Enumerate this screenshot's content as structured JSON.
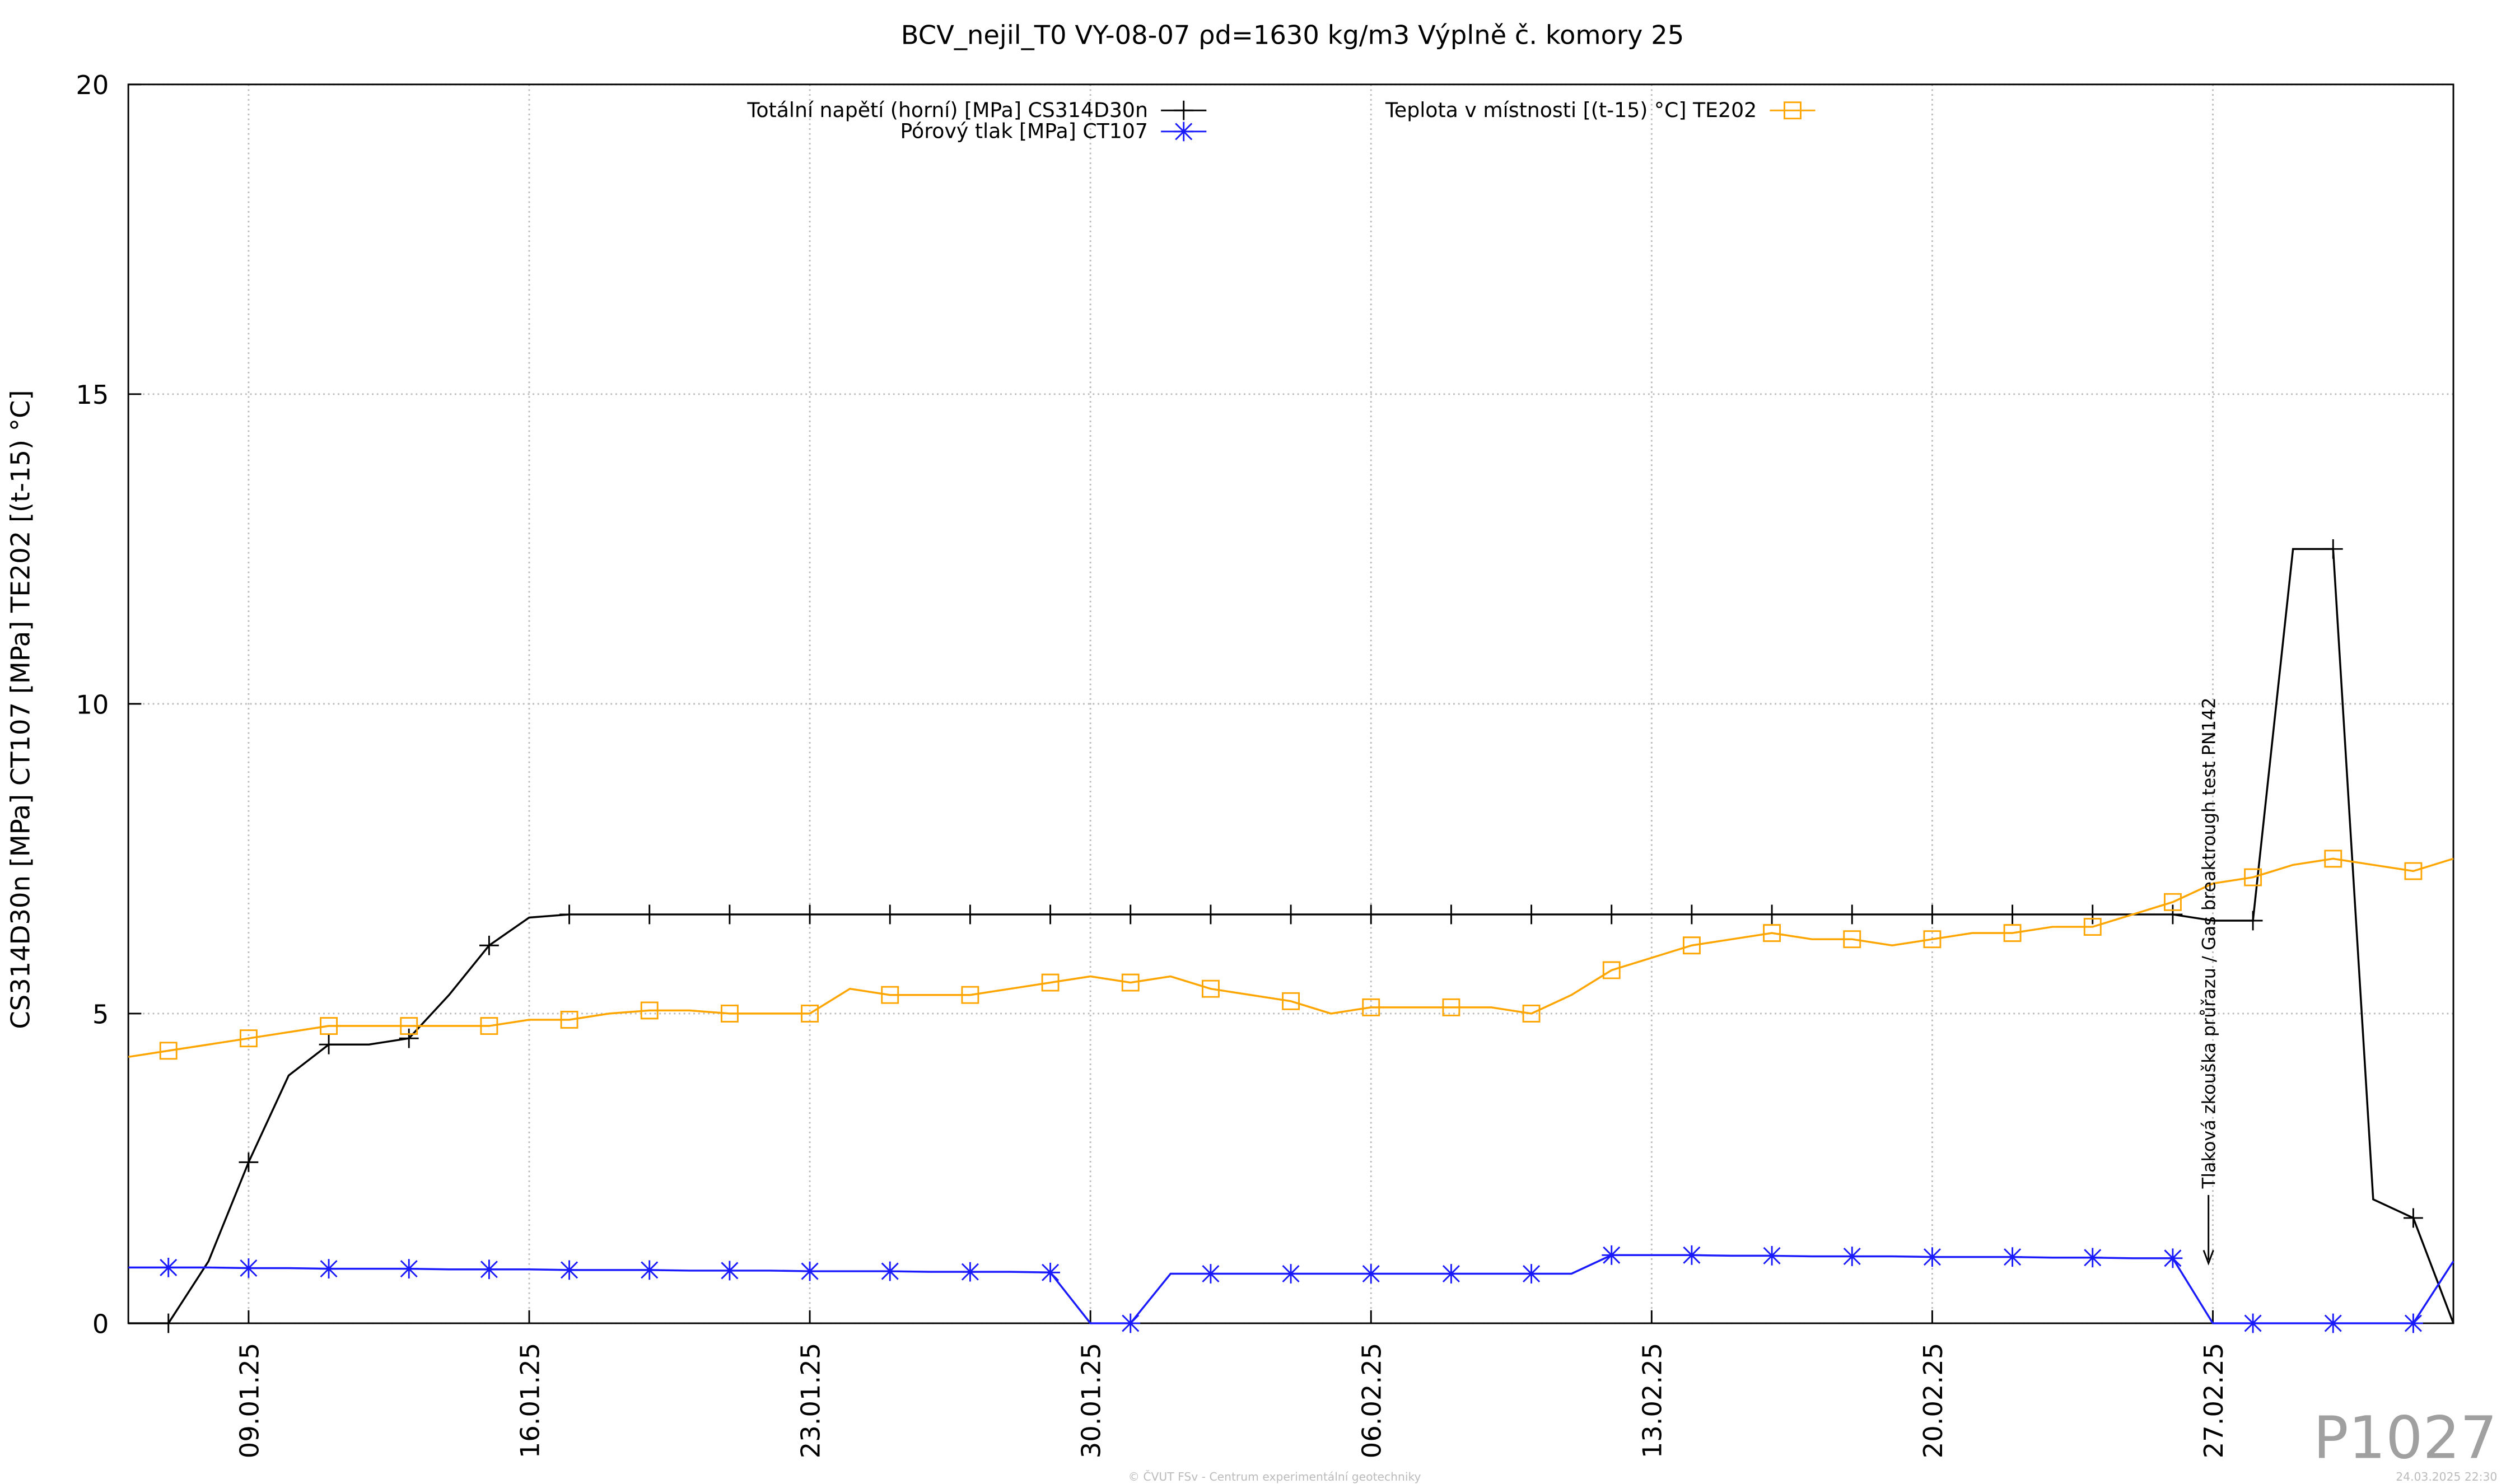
{
  "chart_data": {
    "type": "line",
    "title": "BCV_nejil_T0 VY-08-07 ρd=1630 kg/m3 Výplně č. komory 25",
    "y_label": "CS314D30n [MPa] CT107 [MPa] TE202 [(t-15) °C]",
    "x": [
      "2025-01-06",
      "2025-01-07",
      "2025-01-08",
      "2025-01-09",
      "2025-01-10",
      "2025-01-11",
      "2025-01-12",
      "2025-01-13",
      "2025-01-14",
      "2025-01-15",
      "2025-01-16",
      "2025-01-17",
      "2025-01-18",
      "2025-01-19",
      "2025-01-20",
      "2025-01-21",
      "2025-01-22",
      "2025-01-23",
      "2025-01-24",
      "2025-01-25",
      "2025-01-26",
      "2025-01-27",
      "2025-01-28",
      "2025-01-29",
      "2025-01-30",
      "2025-01-31",
      "2025-02-01",
      "2025-02-02",
      "2025-02-03",
      "2025-02-04",
      "2025-02-05",
      "2025-02-06",
      "2025-02-07",
      "2025-02-08",
      "2025-02-09",
      "2025-02-10",
      "2025-02-11",
      "2025-02-12",
      "2025-02-13",
      "2025-02-14",
      "2025-02-15",
      "2025-02-16",
      "2025-02-17",
      "2025-02-18",
      "2025-02-19",
      "2025-02-20",
      "2025-02-21",
      "2025-02-22",
      "2025-02-23",
      "2025-02-24",
      "2025-02-25",
      "2025-02-26",
      "2025-02-27",
      "2025-02-28",
      "2025-03-01",
      "2025-03-02",
      "2025-03-03",
      "2025-03-04",
      "2025-03-05"
    ],
    "series": [
      {
        "name": "Totální napětí (horní) [MPa] CS314D30n",
        "color": "#000000",
        "marker": "plus",
        "values": [
          0,
          0,
          1.0,
          2.6,
          4.0,
          4.5,
          4.5,
          4.6,
          5.3,
          6.1,
          6.55,
          6.6,
          6.6,
          6.6,
          6.6,
          6.6,
          6.6,
          6.6,
          6.6,
          6.6,
          6.6,
          6.6,
          6.6,
          6.6,
          6.6,
          6.6,
          6.6,
          6.6,
          6.6,
          6.6,
          6.6,
          6.6,
          6.6,
          6.6,
          6.6,
          6.6,
          6.6,
          6.6,
          6.6,
          6.6,
          6.6,
          6.6,
          6.6,
          6.6,
          6.6,
          6.6,
          6.6,
          6.6,
          6.6,
          6.6,
          6.6,
          6.6,
          6.5,
          6.5,
          12.5,
          12.5,
          2.0,
          1.7,
          0
        ]
      },
      {
        "name": "Pórový tlak [MPa] CT107",
        "color": "#1a1aff",
        "marker": "star",
        "values": [
          0.9,
          0.9,
          0.9,
          0.89,
          0.89,
          0.88,
          0.88,
          0.88,
          0.87,
          0.87,
          0.87,
          0.86,
          0.86,
          0.86,
          0.85,
          0.85,
          0.85,
          0.84,
          0.84,
          0.84,
          0.83,
          0.83,
          0.83,
          0.82,
          0,
          0,
          0.8,
          0.8,
          0.8,
          0.8,
          0.8,
          0.8,
          0.8,
          0.8,
          0.8,
          0.8,
          0.8,
          1.1,
          1.1,
          1.1,
          1.09,
          1.09,
          1.08,
          1.08,
          1.08,
          1.07,
          1.07,
          1.07,
          1.06,
          1.06,
          1.05,
          1.05,
          0,
          0,
          0,
          0,
          0,
          0,
          1.0
        ]
      },
      {
        "name": "Teplota v místnosti [(t-15) °C] TE202",
        "color": "#ffa500",
        "marker": "square",
        "values": [
          4.3,
          4.4,
          4.5,
          4.6,
          4.7,
          4.8,
          4.8,
          4.8,
          4.8,
          4.8,
          4.9,
          4.9,
          5.0,
          5.05,
          5.05,
          5.0,
          5.0,
          5.0,
          5.4,
          5.3,
          5.3,
          5.3,
          5.4,
          5.5,
          5.6,
          5.5,
          5.6,
          5.4,
          5.3,
          5.2,
          5.0,
          5.1,
          5.1,
          5.1,
          5.1,
          5.0,
          5.3,
          5.7,
          5.9,
          6.1,
          6.2,
          6.3,
          6.2,
          6.2,
          6.1,
          6.2,
          6.3,
          6.3,
          6.4,
          6.4,
          6.6,
          6.8,
          7.1,
          7.2,
          7.4,
          7.5,
          7.4,
          7.3,
          7.5
        ]
      }
    ],
    "xlim": [
      "2025-01-06",
      "2025-03-05"
    ],
    "xticks": [
      {
        "value": "2025-01-09",
        "label": "09.01.25"
      },
      {
        "value": "2025-01-16",
        "label": "16.01.25"
      },
      {
        "value": "2025-01-23",
        "label": "23.01.25"
      },
      {
        "value": "2025-01-30",
        "label": "30.01.25"
      },
      {
        "value": "2025-02-06",
        "label": "06.02.25"
      },
      {
        "value": "2025-02-13",
        "label": "13.02.25"
      },
      {
        "value": "2025-02-20",
        "label": "20.02.25"
      },
      {
        "value": "2025-02-27",
        "label": "27.02.25"
      }
    ],
    "ylim": [
      0,
      20
    ],
    "yticks": [
      0,
      5,
      10,
      15,
      20
    ],
    "grid": true,
    "legend": "top",
    "annotations": [
      {
        "text": "Tlaková zkouška průřazu / Gas breaktrough test PN142",
        "x": "2025-02-26"
      }
    ],
    "watermark": "P1027",
    "footer": "© ČVUT FSv - Centrum experimentální geotechniky",
    "timestamp": "24.03.2025 22:30"
  }
}
